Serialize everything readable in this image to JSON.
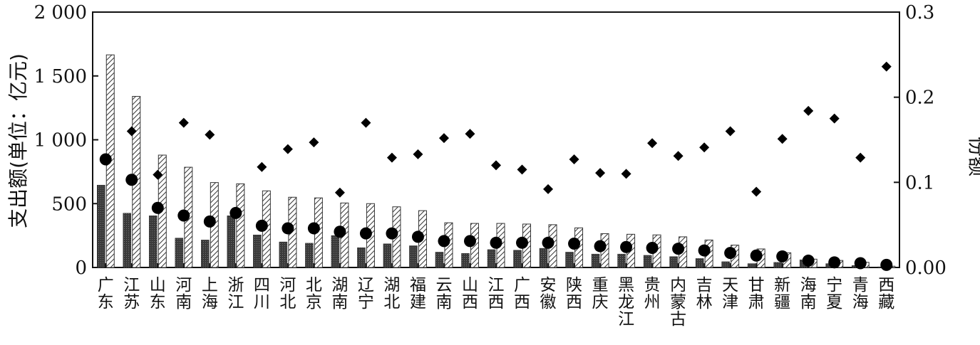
{
  "chart_data": {
    "type": "bar",
    "ylabel_left": "支出额(单位：亿元)",
    "ylabel_right": "份额",
    "ylim_left": [
      0,
      2000
    ],
    "ylim_right": [
      0,
      0.3
    ],
    "yticks_left": [
      "0",
      "500",
      "1 000",
      "1 500",
      "2 000"
    ],
    "yticks_right": [
      "0.00",
      "0.1",
      "0.2",
      "0.3"
    ],
    "categories": [
      "广东",
      "江苏",
      "山东",
      "河南",
      "上海",
      "浙江",
      "四川",
      "河北",
      "北京",
      "湖南",
      "辽宁",
      "湖北",
      "福建",
      "云南",
      "山西",
      "江西",
      "广西",
      "安徽",
      "陕西",
      "重庆",
      "黑龙江",
      "贵州",
      "内蒙古",
      "吉林",
      "天津",
      "甘肃",
      "新疆",
      "海南",
      "宁夏",
      "青海",
      "西藏"
    ],
    "series": [
      {
        "kind": "bar",
        "pattern": "solid-dark",
        "axis": "left",
        "values": [
          645,
          425,
          405,
          230,
          215,
          405,
          255,
          200,
          190,
          250,
          155,
          185,
          170,
          120,
          110,
          140,
          135,
          150,
          120,
          105,
          105,
          95,
          85,
          70,
          45,
          30,
          40,
          60,
          30,
          15,
          5
        ]
      },
      {
        "kind": "bar",
        "pattern": "hatched",
        "axis": "left",
        "values": [
          1665,
          1340,
          880,
          785,
          665,
          655,
          600,
          550,
          545,
          505,
          500,
          475,
          445,
          350,
          345,
          345,
          340,
          335,
          310,
          265,
          260,
          255,
          240,
          215,
          175,
          145,
          115,
          65,
          55,
          40,
          10
        ]
      },
      {
        "kind": "scatter",
        "marker": "circle",
        "axis": "right",
        "values": [
          0.127,
          0.103,
          0.07,
          0.061,
          0.054,
          0.064,
          0.049,
          0.046,
          0.046,
          0.042,
          0.04,
          0.04,
          0.036,
          0.031,
          0.031,
          0.029,
          0.029,
          0.029,
          0.028,
          0.025,
          0.024,
          0.023,
          0.022,
          0.02,
          0.017,
          0.014,
          0.013,
          0.008,
          0.006,
          0.005,
          0.003
        ]
      },
      {
        "kind": "scatter",
        "marker": "diamond",
        "axis": "right",
        "values": [
          null,
          0.16,
          0.109,
          0.17,
          0.156,
          0.064,
          0.118,
          0.139,
          0.147,
          0.088,
          0.17,
          0.129,
          0.133,
          0.152,
          0.157,
          0.12,
          0.115,
          0.092,
          0.127,
          0.111,
          0.11,
          0.146,
          0.131,
          0.141,
          0.16,
          0.089,
          0.151,
          0.184,
          0.175,
          0.129,
          0.236
        ]
      }
    ],
    "grid": false,
    "legend": "none"
  }
}
